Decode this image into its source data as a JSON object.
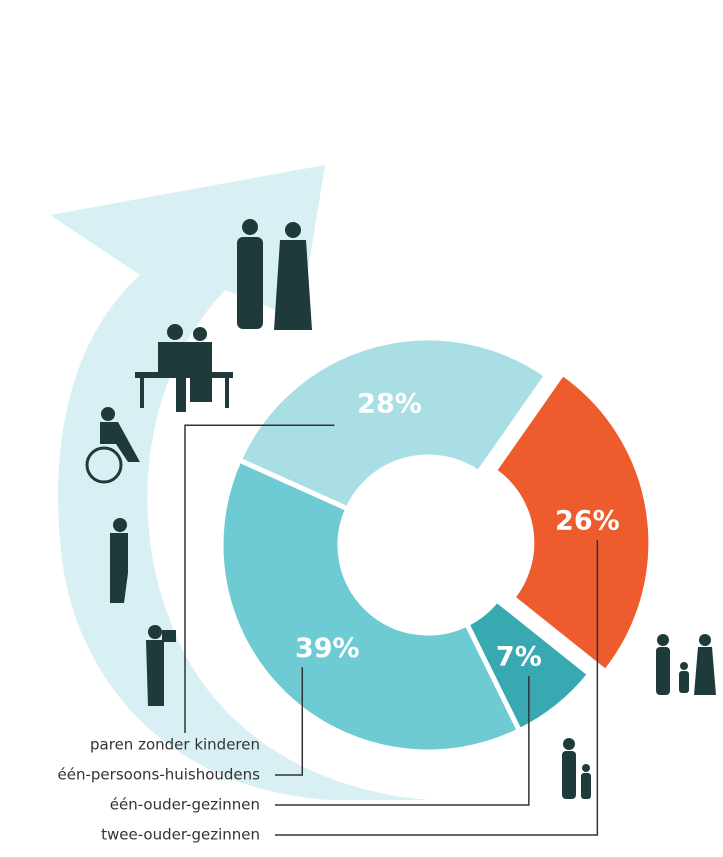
{
  "chart_data": {
    "type": "donut",
    "categories": [
      "paren zonder kinderen",
      "twee-ouder-gezinnen",
      "één-ouder-gezinnen",
      "één-persoons-huishoudens"
    ],
    "values": [
      28,
      26,
      7,
      39
    ],
    "value_labels": [
      "28%",
      "26%",
      "7%",
      "39%"
    ],
    "colors": [
      "#a9dfe4",
      "#ee5b2c",
      "#38a9b1",
      "#6ecbd3"
    ]
  }
}
